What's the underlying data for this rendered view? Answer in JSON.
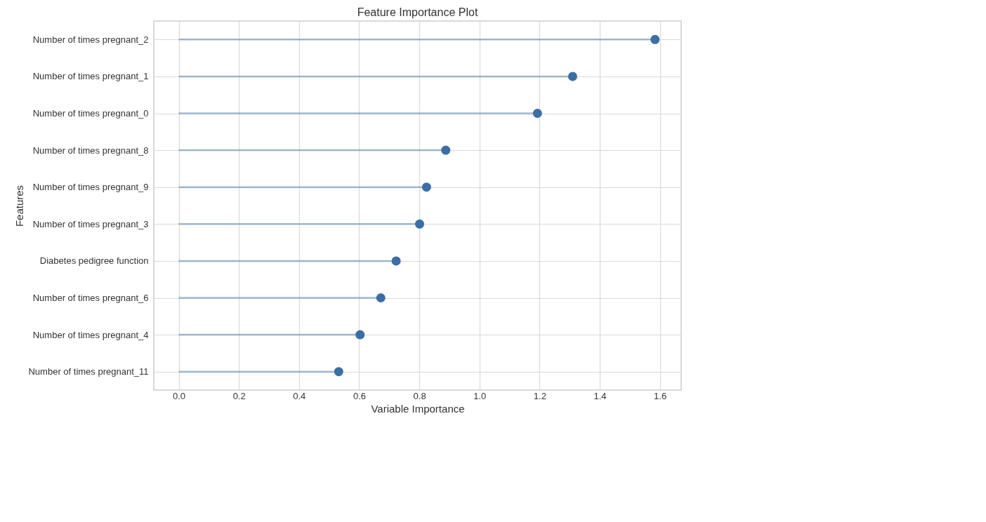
{
  "chart_data": {
    "type": "lollipop",
    "orientation": "horizontal",
    "title": "Feature Importance Plot",
    "xlabel": "Variable Importance",
    "ylabel": "Features",
    "categories": [
      "Number of times pregnant_2",
      "Number of times pregnant_1",
      "Number of times pregnant_0",
      "Number of times pregnant_8",
      "Number of times pregnant_9",
      "Number of times pregnant_3",
      "Diabetes pedigree function",
      "Number of times pregnant_6",
      "Number of times pregnant_4",
      "Number of times pregnant_11"
    ],
    "series": [
      {
        "color": "#3b6ea5",
        "values": [
          1.584,
          1.31,
          1.193,
          0.888,
          0.824,
          0.801,
          0.723,
          0.672,
          0.603,
          0.532
        ]
      }
    ],
    "xlim": [
      -0.083,
      1.671
    ],
    "xticks": [
      {
        "value": 0,
        "label": "0.0"
      },
      {
        "value": 0.2,
        "label": "0.2"
      },
      {
        "value": 0.4,
        "label": "0.4"
      },
      {
        "value": 0.6,
        "label": "0.6"
      },
      {
        "value": 0.8,
        "label": "0.8"
      },
      {
        "value": 1.0,
        "label": "1.0"
      },
      {
        "value": 1.2,
        "label": "1.2"
      },
      {
        "value": 1.4,
        "label": "1.4"
      },
      {
        "value": 1.6,
        "label": "1.6"
      }
    ],
    "grid": true,
    "marker": "circle"
  }
}
